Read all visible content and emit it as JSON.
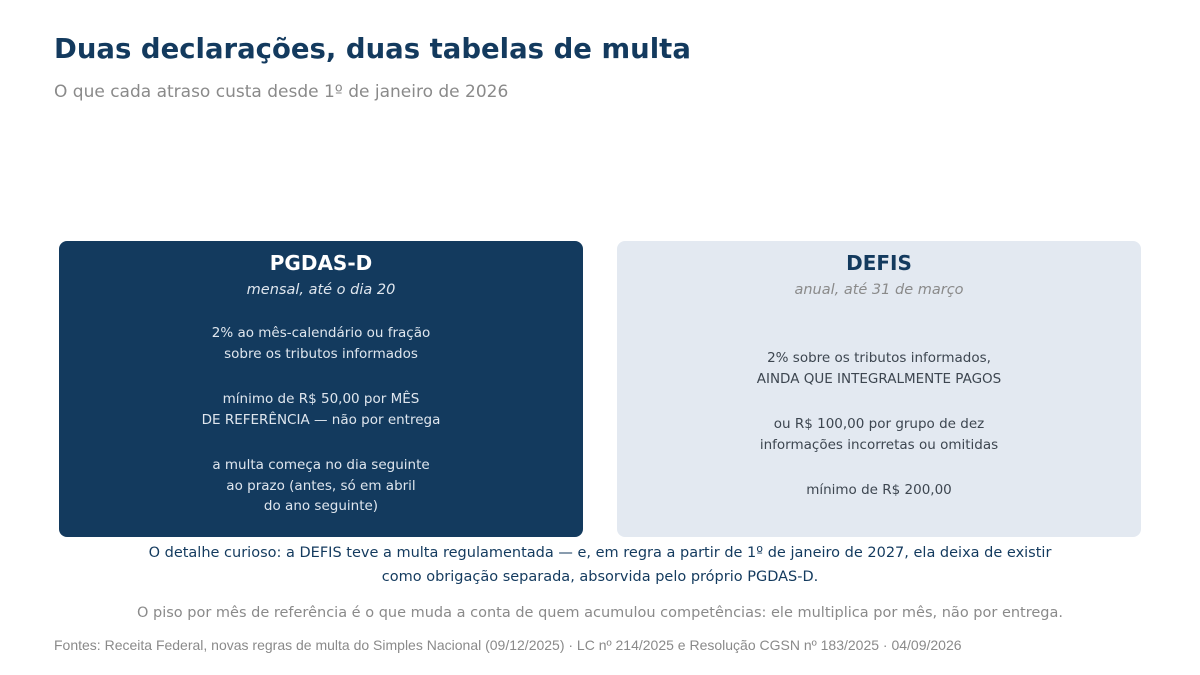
{
  "header": {
    "title": "Duas declarações, duas tabelas de multa",
    "subtitle": "O que cada atraso custa desde 1º de janeiro de 2026"
  },
  "cards": [
    {
      "title": "PGDAS-D",
      "subtitle": "mensal, até o dia 20",
      "paragraphs": [
        [
          "2% ao mês-calendário ou fração",
          "sobre os tributos informados"
        ],
        [
          "mínimo de R$ 50,00 por MÊS",
          "DE REFERÊNCIA — não por entrega"
        ],
        [
          "a multa começa no dia seguinte",
          "ao prazo (antes, só em abril",
          "do ano seguinte)"
        ]
      ]
    },
    {
      "title": "DEFIS",
      "subtitle": "anual, até 31 de março",
      "paragraphs": [
        [
          "2% sobre os tributos informados,",
          "AINDA QUE INTEGRALMENTE PAGOS"
        ],
        [
          "ou R$ 100,00 por grupo de dez",
          "informações incorretas ou omitidas"
        ],
        [
          "mínimo de R$ 200,00"
        ]
      ]
    }
  ],
  "note": [
    "O detalhe curioso: a DEFIS teve a multa regulamentada — e, em regra a partir de 1º de janeiro de 2027, ela deixa de existir",
    "como obrigação separada, absorvida pelo próprio PGDAS-D."
  ],
  "floor_note": "O piso por mês de referência é o que muda a conta de quem acumulou competências: ele multiplica por mês, não por entrega.",
  "sources": "Fontes: Receita Federal, novas regras de multa do Simples Nacional (09/12/2025) · LC nº 214/2025 e Resolução CGSN nº 183/2025 · 04/09/2026",
  "colors": {
    "navy": "#133a5e",
    "light_card": "#e3e9f1",
    "gray_text": "#8a8a8a"
  }
}
